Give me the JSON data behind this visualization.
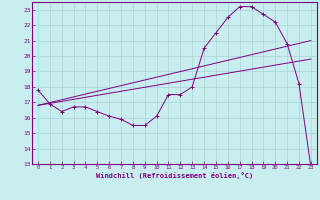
{
  "xlabel": "Windchill (Refroidissement éolien,°C)",
  "ylabel": "",
  "xlim": [
    -0.5,
    23.5
  ],
  "ylim": [
    13,
    23.5
  ],
  "yticks": [
    13,
    14,
    15,
    16,
    17,
    18,
    19,
    20,
    21,
    22,
    23
  ],
  "xticks": [
    0,
    1,
    2,
    3,
    4,
    5,
    6,
    7,
    8,
    9,
    10,
    11,
    12,
    13,
    14,
    15,
    16,
    17,
    18,
    19,
    20,
    21,
    22,
    23
  ],
  "background_color": "#c8eef0",
  "grid_color": "#aad4d8",
  "line_color": "#800080",
  "line1_x": [
    0,
    1,
    2,
    3,
    4,
    5,
    6,
    7,
    8,
    9,
    10,
    11,
    12,
    13,
    14,
    15,
    16,
    17,
    18,
    19,
    20,
    21,
    22,
    23
  ],
  "line1_y": [
    17.8,
    16.9,
    16.4,
    16.7,
    16.7,
    16.4,
    16.1,
    15.9,
    15.5,
    15.5,
    16.1,
    17.5,
    17.5,
    18.0,
    20.5,
    21.5,
    22.5,
    23.2,
    23.2,
    22.7,
    22.2,
    20.8,
    18.2,
    12.8
  ],
  "line2_x": [
    0,
    23
  ],
  "line2_y": [
    16.8,
    21.0
  ],
  "line3_x": [
    0,
    23
  ],
  "line3_y": [
    16.8,
    19.8
  ],
  "marker": "+"
}
